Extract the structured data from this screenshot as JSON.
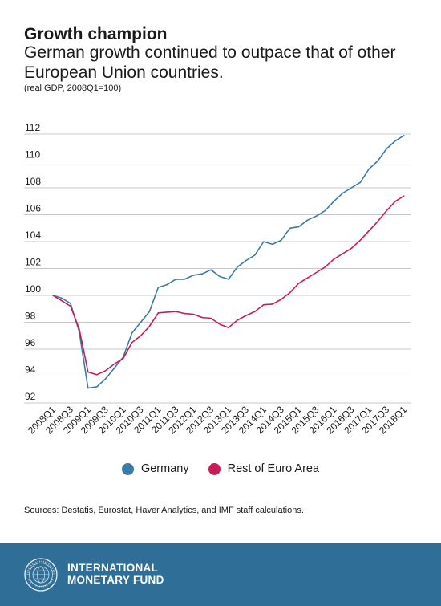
{
  "header": {
    "title": "Growth champion",
    "subtitle": "German growth continued to outpace that of other European Union countries.",
    "units": "(real GDP, 2008Q1=100)"
  },
  "legend": {
    "germany": "Germany",
    "rest": "Rest of Euro Area"
  },
  "source": "Sources: Destatis, Eurostat, Haver Analytics, and IMF staff calculations.",
  "footer": {
    "line1": "INTERNATIONAL",
    "line2": "MONETARY FUND"
  },
  "colors": {
    "germany": "#3a7aa6",
    "rest": "#cc1a56",
    "footer_bg": "#2f6e97"
  },
  "chart_data": {
    "type": "line",
    "x": [
      "2008Q1",
      "2008Q2",
      "2008Q3",
      "2008Q4",
      "2009Q1",
      "2009Q2",
      "2009Q3",
      "2009Q4",
      "2010Q1",
      "2010Q2",
      "2010Q3",
      "2010Q4",
      "2011Q1",
      "2011Q2",
      "2011Q3",
      "2011Q4",
      "2012Q1",
      "2012Q2",
      "2012Q3",
      "2012Q4",
      "2013Q1",
      "2013Q2",
      "2013Q3",
      "2013Q4",
      "2014Q1",
      "2014Q2",
      "2014Q3",
      "2014Q4",
      "2015Q1",
      "2015Q2",
      "2015Q3",
      "2015Q4",
      "2016Q1",
      "2016Q2",
      "2016Q3",
      "2016Q4",
      "2017Q1",
      "2017Q2",
      "2017Q3",
      "2017Q4",
      "2018Q1"
    ],
    "tick_labels": [
      "2008Q1",
      "2008Q3",
      "2009Q1",
      "2009Q3",
      "2010Q1",
      "2010Q3",
      "2011Q1",
      "2011Q3",
      "2012Q1",
      "2012Q3",
      "2013Q1",
      "2013Q3",
      "2014Q1",
      "2014Q3",
      "2015Q1",
      "2015Q3",
      "2016Q1",
      "2016Q3",
      "2017Q1",
      "2017Q3",
      "2018Q1"
    ],
    "series": [
      {
        "name": "Germany",
        "color": "#3a7aa6",
        "values": [
          100.0,
          99.8,
          99.4,
          97.3,
          93.1,
          93.2,
          93.8,
          94.6,
          95.4,
          97.2,
          98.0,
          98.8,
          100.6,
          100.8,
          101.2,
          101.2,
          101.5,
          101.6,
          101.9,
          101.4,
          101.2,
          102.1,
          102.6,
          103.0,
          104.0,
          103.8,
          104.1,
          105.0,
          105.1,
          105.6,
          105.9,
          106.3,
          107.0,
          107.6,
          108.0,
          108.4,
          109.4,
          110.0,
          110.9,
          111.5,
          111.9
        ]
      },
      {
        "name": "Rest of Euro Area",
        "color": "#cc1a56",
        "values": [
          100.0,
          99.6,
          99.2,
          97.5,
          94.3,
          94.1,
          94.4,
          94.9,
          95.3,
          96.5,
          97.0,
          97.7,
          98.7,
          98.75,
          98.8,
          98.65,
          98.6,
          98.35,
          98.3,
          97.85,
          97.6,
          98.15,
          98.5,
          98.8,
          99.3,
          99.35,
          99.7,
          100.2,
          100.9,
          101.3,
          101.7,
          102.1,
          102.7,
          103.1,
          103.5,
          104.1,
          104.8,
          105.5,
          106.3,
          107.0,
          107.4
        ]
      }
    ],
    "ylim": [
      92,
      112
    ],
    "yticks": [
      92,
      94,
      96,
      98,
      100,
      102,
      104,
      106,
      108,
      110,
      112
    ],
    "grid": true,
    "legend_position": "bottom"
  }
}
